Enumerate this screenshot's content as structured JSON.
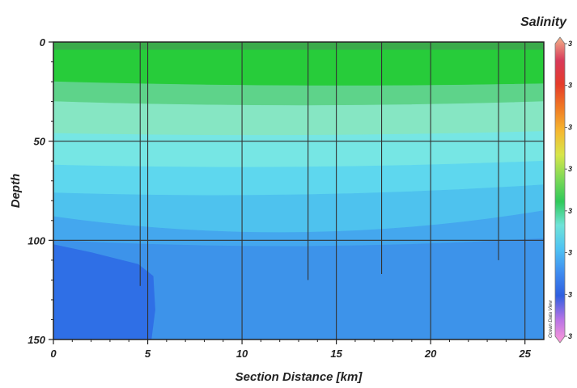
{
  "chart_data": {
    "type": "heatmap",
    "title": "Salinity",
    "xlabel": "Section Distance [km]",
    "ylabel": "Depth",
    "xlim": [
      0,
      26
    ],
    "ylim": [
      150,
      0
    ],
    "x_ticks": [
      "0",
      "5",
      "10",
      "15",
      "20",
      "25"
    ],
    "x_tick_values": [
      0,
      5,
      10,
      15,
      20,
      25
    ],
    "y_ticks": [
      "0",
      "50",
      "100",
      "150"
    ],
    "y_tick_values": [
      0,
      50,
      100,
      150
    ],
    "grid": true,
    "colorbar_position": "right",
    "colorbar_tick_labels": [
      "3",
      "3",
      "3",
      "3",
      "3",
      "3",
      "3",
      "3"
    ],
    "colorscale": [
      "#ff9ad8",
      "#b673e6",
      "#2f5fe0",
      "#3f8df0",
      "#4fc3f3",
      "#6fe3d8",
      "#2fc95a",
      "#7ed957",
      "#d7e64a",
      "#f5b830",
      "#f07a24",
      "#e53b2a",
      "#d83a5a",
      "#f2b28a"
    ],
    "station_distances_km": [
      4.6,
      5,
      10,
      13.5,
      15,
      17.4,
      20,
      23.6,
      25
    ],
    "station_bottom_depths": [
      123,
      150,
      150,
      120,
      150,
      117,
      150,
      110,
      150
    ],
    "layers": [
      {
        "color": "#3aaa4a",
        "top": [
          0,
          0,
          0
        ],
        "bottom": [
          4,
          4,
          4
        ]
      },
      {
        "color": "#27cc3a",
        "top": [
          4,
          4,
          4
        ],
        "bottom": [
          20,
          22,
          21
        ]
      },
      {
        "color": "#5ed38a",
        "top": [
          20,
          22,
          21
        ],
        "bottom": [
          30,
          32,
          30
        ]
      },
      {
        "color": "#86e6c3",
        "top": [
          30,
          32,
          30
        ],
        "bottom": [
          46,
          47,
          45
        ]
      },
      {
        "color": "#76e6e4",
        "top": [
          46,
          47,
          45
        ],
        "bottom": [
          62,
          63,
          60
        ]
      },
      {
        "color": "#5ed7ee",
        "top": [
          62,
          63,
          60
        ],
        "bottom": [
          76,
          77,
          72
        ]
      },
      {
        "color": "#4ec2ee",
        "top": [
          76,
          77,
          72
        ],
        "bottom": [
          88,
          96,
          85
        ]
      },
      {
        "color": "#44a7ee",
        "top": [
          88,
          96,
          85
        ],
        "bottom": [
          100,
          103,
          99
        ]
      },
      {
        "color": "#3d93ea",
        "top": [
          100,
          103,
          99
        ],
        "bottom": [
          150,
          150,
          150
        ]
      }
    ],
    "deep_patch": {
      "color": "#2f6fe6",
      "outline_km_depth": [
        [
          0,
          102
        ],
        [
          2,
          106
        ],
        [
          4.5,
          112
        ],
        [
          5.3,
          118
        ],
        [
          5.4,
          135
        ],
        [
          5.2,
          150
        ],
        [
          0,
          150
        ]
      ]
    }
  },
  "watermark": "Ocean Data View"
}
